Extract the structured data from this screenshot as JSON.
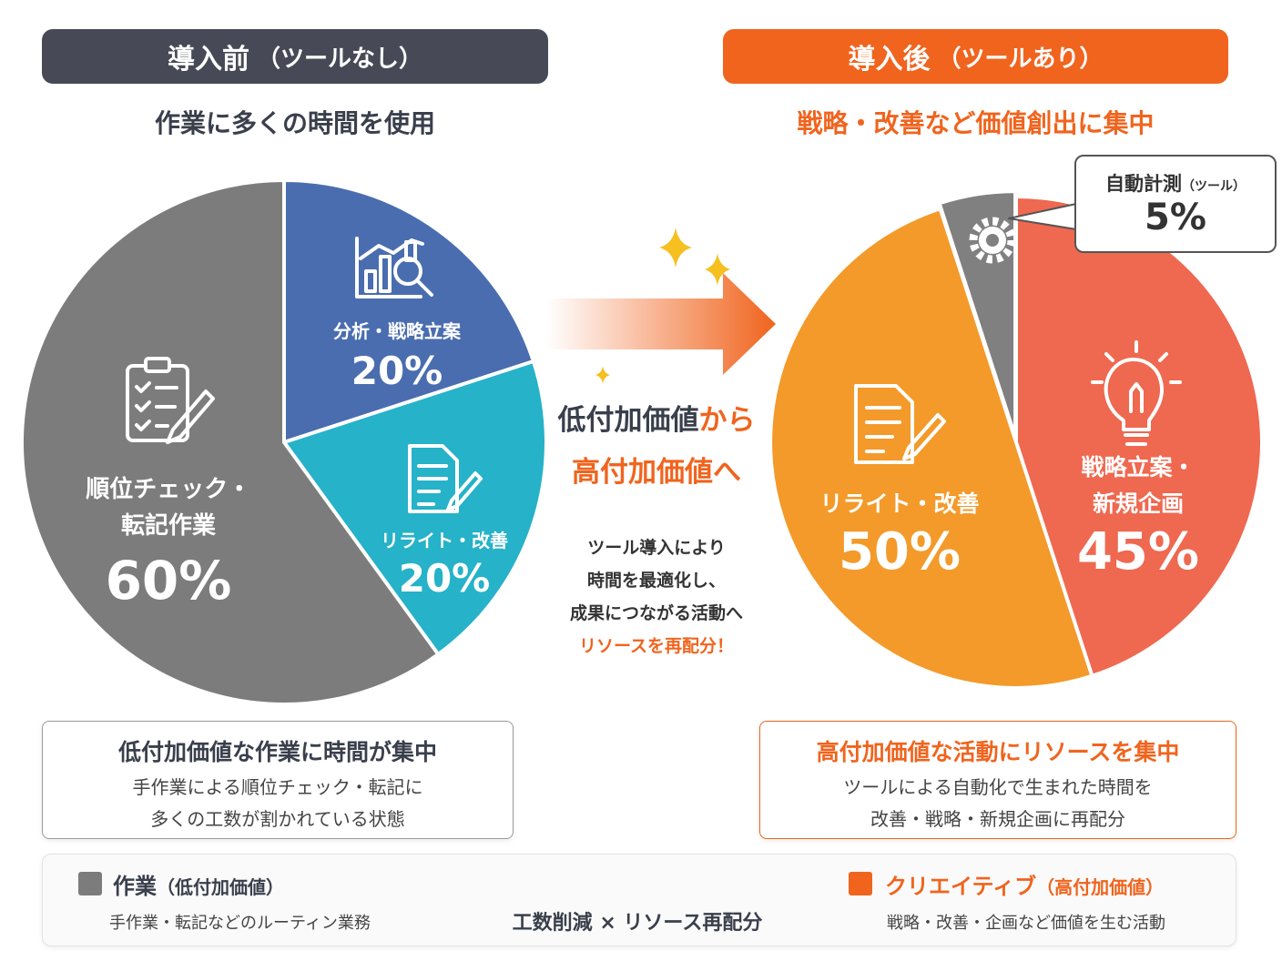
{
  "left": {
    "header": "導入前",
    "header_paren": "（ツールなし）",
    "subtitle": "作業に多くの時間を使用",
    "box_title": "低付加価値な作業に時間が集中",
    "box_lines": [
      "手作業による順位チェック・転記に",
      "多くの工数が割かれている状態"
    ]
  },
  "right": {
    "header": "導入後",
    "header_paren": "（ツールあり）",
    "subtitle": "戦略・改善など価値創出に集中",
    "callout_label": "自動計測",
    "callout_sub": "（ツール）",
    "callout_value": "5%",
    "box_title": "高付加価値な活動にリソースを集中",
    "box_lines": [
      "ツールによる自動化で生まれた時間を",
      "改善・戦略・新規企画に再配分"
    ]
  },
  "center": {
    "headline_1a": "低付加価値",
    "headline_1b": "から",
    "headline_2": "高付加価値へ",
    "desc": [
      "ツール導入により",
      "時間を最適化し、",
      "成果につながる活動へ"
    ],
    "desc_highlight": "リソースを再配分！"
  },
  "legend": {
    "work_label": "作業",
    "work_paren": "（低付加価値）",
    "work_desc": "手作業・転記などのルーティン業務",
    "flow_label": "工数削減 × リソース再配分",
    "creative_label": "クリエイティブ",
    "creative_paren": "（高付加価値）",
    "creative_desc": "戦略・改善・企画など価値を生む活動"
  },
  "colors": {
    "dark": "#474a56",
    "orange": "#f0641e",
    "gray": "#7c7c7c",
    "blue": "#4a6db0",
    "teal": "#26b2c8",
    "amber": "#f39a2a",
    "coral": "#ef6850",
    "gear_gray": "#808080"
  },
  "chart_data": [
    {
      "type": "pie",
      "title": "導入前（ツールなし）",
      "slices": [
        {
          "label": "順位チェック・転記作業",
          "value": 60,
          "display": "60%",
          "color": "#7c7c7c",
          "icon": "clipboard-checklist-icon"
        },
        {
          "label": "分析・戦略立案",
          "value": 20,
          "display": "20%",
          "color": "#4a6db0",
          "icon": "chart-magnifier-icon"
        },
        {
          "label": "リライト・改善",
          "value": 20,
          "display": "20%",
          "color": "#26b2c8",
          "icon": "document-pen-icon"
        }
      ]
    },
    {
      "type": "pie",
      "title": "導入後（ツールあり）",
      "slices": [
        {
          "label": "自動計測（ツール）",
          "value": 5,
          "display": "5%",
          "color": "#808080",
          "icon": "gear-icon"
        },
        {
          "label": "戦略立案・新規企画",
          "value": 45,
          "display": "45%",
          "color": "#ef6850",
          "icon": "lightbulb-icon"
        },
        {
          "label": "リライト・改善",
          "value": 50,
          "display": "50%",
          "color": "#f39a2a",
          "icon": "document-pen-icon"
        }
      ]
    }
  ]
}
